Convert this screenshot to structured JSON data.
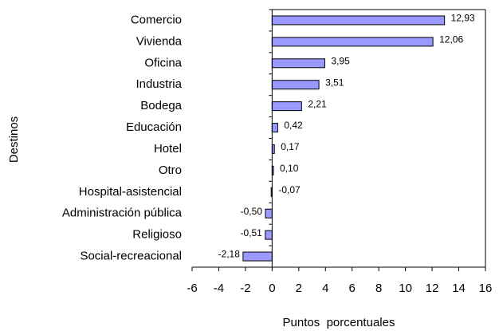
{
  "chart_data": {
    "type": "bar",
    "orientation": "horizontal",
    "categories": [
      "Comercio",
      "Vivienda",
      "Oficina",
      "Industria",
      "Bodega",
      "Educación",
      "Hotel",
      "Otro",
      "Hospital-asistencial",
      "Administración pública",
      "Religioso",
      "Social-recreacional"
    ],
    "values": [
      12.93,
      12.06,
      3.95,
      3.51,
      2.21,
      0.42,
      0.17,
      0.1,
      -0.07,
      -0.5,
      -0.51,
      -2.18
    ],
    "value_labels": [
      "12,93",
      "12,06",
      "3,95",
      "3,51",
      "2,21",
      "0,42",
      "0,17",
      "0,10",
      "-0,07",
      "-0,50",
      "-0,51",
      "-2,18"
    ],
    "color": "#9999ff",
    "xlim": [
      -6,
      16
    ],
    "xticks": [
      -6,
      -4,
      -2,
      0,
      2,
      4,
      6,
      8,
      10,
      12,
      14,
      16
    ],
    "x_label": "Puntos  porcentuales",
    "y_label": "Destinos"
  }
}
